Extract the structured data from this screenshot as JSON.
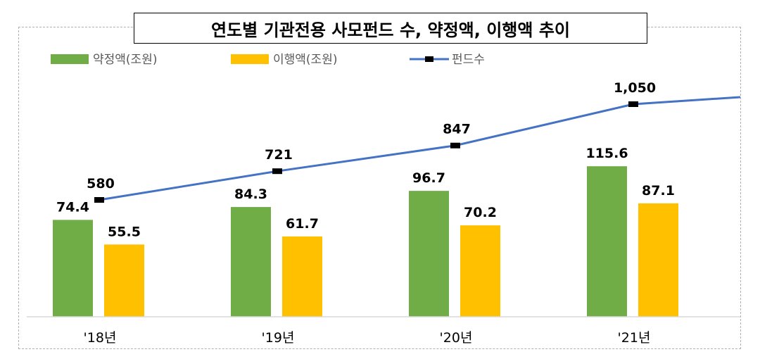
{
  "title": "연도별 기관전용 사모펀드 수, 약정액, 이행액 추이",
  "chart_data": {
    "type": "bar",
    "categories": [
      "'18년",
      "'19년",
      "'20년",
      "'21년"
    ],
    "series": [
      {
        "name": "약정액(조원)",
        "type": "bar",
        "color": "#70AD47",
        "values": [
          74.4,
          84.3,
          96.7,
          115.6
        ]
      },
      {
        "name": "이행액(조원)",
        "type": "bar",
        "color": "#FFC000",
        "values": [
          55.5,
          61.7,
          70.2,
          87.1
        ]
      },
      {
        "name": "펀드수",
        "type": "line",
        "color": "#4472C4",
        "marker_color": "#000000",
        "values": [
          580,
          721,
          847,
          1050
        ],
        "labels": [
          "580",
          "721",
          "847",
          "1,050"
        ]
      }
    ],
    "bar_axis_range": [
      0,
      160
    ],
    "line_axis_range": [
      -400,
      1200
    ],
    "line_continues_past_last_point": true,
    "grid": false,
    "legend_position": "top-left"
  }
}
